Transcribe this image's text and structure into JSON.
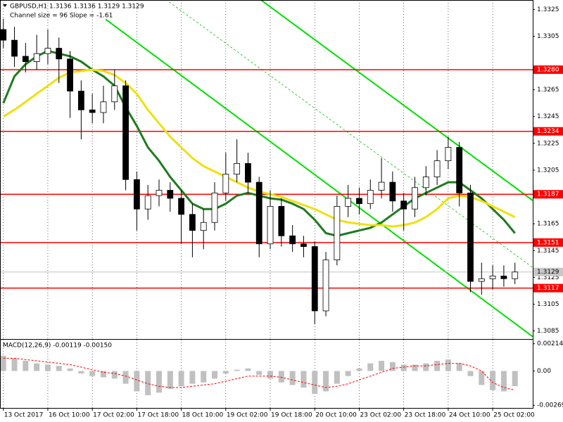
{
  "chart_data": [
    {
      "type": "candlestick",
      "title": "GBPUSD,H1  1.3136 1.3136 1.3129 1.3129",
      "subtitle": "Channel size = 96 Slope = -1.61",
      "candles": [
        [
          1.331,
          1.3318,
          1.3296,
          1.3302
        ],
        [
          1.3302,
          1.3312,
          1.3282,
          1.329
        ],
        [
          1.329,
          1.33,
          1.3278,
          1.3286
        ],
        [
          1.3286,
          1.3306,
          1.328,
          1.3292
        ],
        [
          1.3292,
          1.331,
          1.3284,
          1.3296
        ],
        [
          1.3296,
          1.3304,
          1.327,
          1.3288
        ],
        [
          1.3288,
          1.3294,
          1.3244,
          1.3264
        ],
        [
          1.3264,
          1.3272,
          1.3228,
          1.325
        ],
        [
          1.325,
          1.3262,
          1.324,
          1.3248
        ],
        [
          1.3248,
          1.3268,
          1.324,
          1.3256
        ],
        [
          1.3256,
          1.328,
          1.325,
          1.3268
        ],
        [
          1.3268,
          1.3272,
          1.319,
          1.3198
        ],
        [
          1.3198,
          1.3204,
          1.316,
          1.3176
        ],
        [
          1.3176,
          1.3194,
          1.3168,
          1.3186
        ],
        [
          1.3186,
          1.3198,
          1.3178,
          1.319
        ],
        [
          1.319,
          1.3196,
          1.3174,
          1.3184
        ],
        [
          1.3184,
          1.319,
          1.315,
          1.3172
        ],
        [
          1.3172,
          1.318,
          1.314,
          1.316
        ],
        [
          1.316,
          1.3176,
          1.3146,
          1.3166
        ],
        [
          1.3166,
          1.3196,
          1.316,
          1.3188
        ],
        [
          1.3188,
          1.3218,
          1.3182,
          1.3202
        ],
        [
          1.3202,
          1.3228,
          1.3196,
          1.321
        ],
        [
          1.321,
          1.3218,
          1.3188,
          1.3196
        ],
        [
          1.3196,
          1.32,
          1.314,
          1.315
        ],
        [
          1.315,
          1.319,
          1.3146,
          1.3178
        ],
        [
          1.3178,
          1.3184,
          1.3148,
          1.3156
        ],
        [
          1.3156,
          1.3164,
          1.3144,
          1.315
        ],
        [
          1.315,
          1.3156,
          1.314,
          1.3148
        ],
        [
          1.3148,
          1.3152,
          1.309,
          1.31
        ],
        [
          1.31,
          1.3144,
          1.3096,
          1.3138
        ],
        [
          1.3138,
          1.3186,
          1.3134,
          1.3178
        ],
        [
          1.3178,
          1.3194,
          1.317,
          1.3184
        ],
        [
          1.3184,
          1.3192,
          1.3172,
          1.318
        ],
        [
          1.318,
          1.3198,
          1.3176,
          1.319
        ],
        [
          1.319,
          1.3214,
          1.3184,
          1.3196
        ],
        [
          1.3196,
          1.3204,
          1.3174,
          1.3182
        ],
        [
          1.3182,
          1.3188,
          1.316,
          1.3176
        ],
        [
          1.3176,
          1.32,
          1.317,
          1.3192
        ],
        [
          1.3192,
          1.3208,
          1.3186,
          1.32
        ],
        [
          1.32,
          1.322,
          1.3194,
          1.3212
        ],
        [
          1.3212,
          1.323,
          1.3206,
          1.3222
        ],
        [
          1.3222,
          1.3226,
          1.3178,
          1.3188
        ],
        [
          1.3188,
          1.3194,
          1.3114,
          1.3122
        ],
        [
          1.3122,
          1.3136,
          1.3112,
          1.3124
        ],
        [
          1.3124,
          1.3134,
          1.3116,
          1.3126
        ],
        [
          1.3126,
          1.3134,
          1.3118,
          1.3124
        ],
        [
          1.3124,
          1.3136,
          1.312,
          1.3129
        ]
      ],
      "xticks": [
        {
          "value": 0,
          "label": "13 Oct 2017"
        },
        {
          "value": 4,
          "label": "16 Oct 10:00"
        },
        {
          "value": 8,
          "label": "17 Oct 02:00"
        },
        {
          "value": 12,
          "label": "17 Oct 18:00"
        },
        {
          "value": 16,
          "label": "18 Oct 10:00"
        },
        {
          "value": 20,
          "label": "19 Oct 02:00"
        },
        {
          "value": 24,
          "label": "19 Oct 18:00"
        },
        {
          "value": 28,
          "label": "20 Oct 10:00"
        },
        {
          "value": 32,
          "label": "23 Oct 02:00"
        },
        {
          "value": 36,
          "label": "23 Oct 18:00"
        },
        {
          "value": 40,
          "label": "24 Oct 10:00"
        },
        {
          "value": 44,
          "label": "25 Oct 02:00"
        }
      ],
      "xlim": [
        -0.3,
        47.6
      ],
      "ylim": [
        1.3079,
        1.3332
      ],
      "yticks": [
        1.3325,
        1.3305,
        1.3265,
        1.3245,
        1.3225,
        1.3205,
        1.3165,
        1.3145,
        1.3125,
        1.3105,
        1.3085
      ],
      "grid": true,
      "bull_color": "#ffffff",
      "bear_color": "#000000",
      "series": [
        {
          "color": "#1f7a1f",
          "values": [
            1.3255,
            1.3275,
            1.3284,
            1.329,
            1.3294,
            1.3292,
            1.329,
            1.3286,
            1.328,
            1.3275,
            1.3268,
            1.3252,
            1.3238,
            1.3222,
            1.3212,
            1.32,
            1.319,
            1.318,
            1.3176,
            1.3176,
            1.318,
            1.3186,
            1.3188,
            1.3186,
            1.3184,
            1.3183,
            1.318,
            1.3176,
            1.3168,
            1.3158,
            1.3156,
            1.3158,
            1.316,
            1.3162,
            1.3166,
            1.3172,
            1.3178,
            1.3184,
            1.3188,
            1.3192,
            1.3196,
            1.3196,
            1.319,
            1.3184,
            1.3176,
            1.3168,
            1.3158
          ]
        },
        {
          "color": "#f0e010",
          "values": [
            1.3245,
            1.325,
            1.3256,
            1.3262,
            1.3268,
            1.3274,
            1.3278,
            1.3279,
            1.328,
            1.3279,
            1.3276,
            1.327,
            1.3262,
            1.325,
            1.324,
            1.323,
            1.3222,
            1.3214,
            1.3208,
            1.3204,
            1.32,
            1.3196,
            1.3192,
            1.3189,
            1.3187,
            1.3185,
            1.3182,
            1.3179,
            1.3176,
            1.3172,
            1.3168,
            1.3166,
            1.3165,
            1.3164,
            1.3164,
            1.3163,
            1.3164,
            1.3166,
            1.317,
            1.3176,
            1.3184,
            1.3186,
            1.3185,
            1.3182,
            1.3178,
            1.3174,
            1.317
          ]
        }
      ],
      "levels": [
        {
          "value": 1.328,
          "label": "1.3280"
        },
        {
          "value": 1.3234,
          "label": "1.3234"
        },
        {
          "value": 1.3187,
          "label": "1.3187"
        },
        {
          "value": 1.3151,
          "label": "1.3151"
        },
        {
          "value": 1.3117,
          "label": "1.3117"
        }
      ],
      "level_color": "#ff0000",
      "current_price": 1.3129,
      "trend_lines": [
        {
          "color": "#00e000",
          "dashed": false,
          "points": [
            [
              23.1,
              1.33324
            ],
            [
              47.6,
              1.31824
            ]
          ]
        },
        {
          "color": "#00e000",
          "dashed": false,
          "points": [
            [
              9.2,
              1.33176
            ],
            [
              47.6,
              1.30808
            ]
          ]
        },
        {
          "color": "#00c000",
          "dashed": true,
          "points": [
            [
              14.6,
              1.33324
            ],
            [
              47.6,
              1.31324
            ]
          ]
        }
      ]
    },
    {
      "type": "macd",
      "title": "MACD(12,26,9) -0.00119 -0.00150",
      "histogram": [
        0.0012,
        0.001,
        0.0008,
        0.0006,
        0.0005,
        0.0004,
        0.0002,
        -0.0002,
        -0.0004,
        -0.0005,
        -0.0006,
        -0.001,
        -0.0016,
        -0.0019,
        -0.0017,
        -0.0014,
        -0.0012,
        -0.001,
        -0.0009,
        -0.0006,
        -0.0002,
        0.0001,
        0.0002,
        -0.0003,
        -0.0006,
        -0.0009,
        -0.0011,
        -0.0013,
        -0.0018,
        -0.0016,
        -0.001,
        -0.0004,
        0.0002,
        0.0006,
        0.0008,
        0.0007,
        0.0005,
        0.0005,
        0.0006,
        0.0008,
        0.0009,
        0.0006,
        -0.0004,
        -0.0011,
        -0.0015,
        -0.0016,
        -0.00119
      ],
      "signal": [
        0.001,
        0.001,
        0.0009,
        0.0008,
        0.0007,
        0.0006,
        0.0005,
        0.0003,
        0.0001,
        -0.0001,
        -0.0002,
        -0.0004,
        -0.0007,
        -0.001,
        -0.0012,
        -0.0013,
        -0.0013,
        -0.0012,
        -0.0011,
        -0.001,
        -0.0008,
        -0.0006,
        -0.0004,
        -0.0004,
        -0.0004,
        -0.0005,
        -0.0007,
        -0.0009,
        -0.0011,
        -0.0013,
        -0.0012,
        -0.001,
        -0.0007,
        -0.0004,
        -0.0001,
        0.0002,
        0.0003,
        0.0004,
        0.0004,
        0.0005,
        0.0006,
        0.0006,
        0.0004,
        0.0,
        -0.0009,
        -0.0013,
        -0.0015
      ],
      "ylim": [
        -0.0029,
        0.0024
      ],
      "yticks": [
        0.00214,
        {
          "value": 0,
          "label": "0.00"
        },
        -0.00269
      ],
      "hist_color": "#c0c0c0",
      "signal_color": "#ff0000"
    }
  ]
}
